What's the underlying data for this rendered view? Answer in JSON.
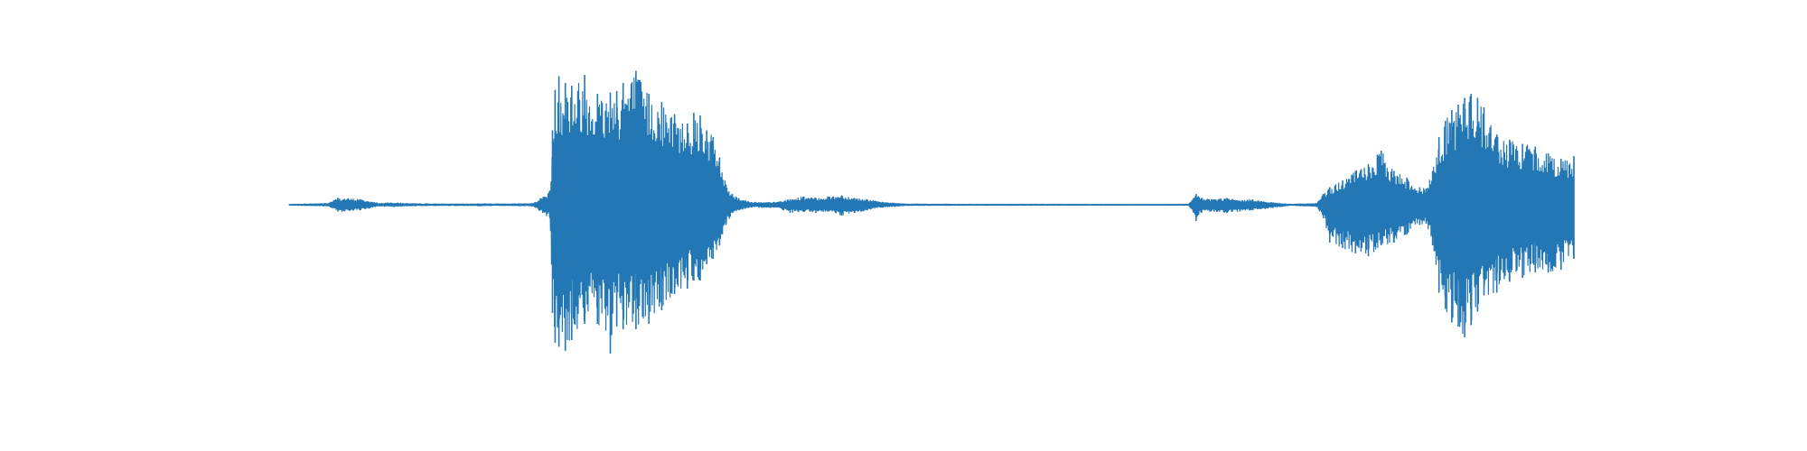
{
  "chart_data": {
    "type": "line",
    "title": "",
    "xlabel": "",
    "ylabel": "",
    "axes_visible": false,
    "grid": false,
    "legend": "none",
    "xlim": [
      0,
      1
    ],
    "ylim": [
      -1.0,
      1.0
    ],
    "series": [
      {
        "color": "#2377b4",
        "kind": "audio-waveform-amplitude-envelope",
        "x": [
          0.0,
          0.03,
          0.038,
          0.055,
          0.07,
          0.08,
          0.095,
          0.12,
          0.135,
          0.15,
          0.17,
          0.19,
          0.203,
          0.205,
          0.207,
          0.21,
          0.215,
          0.22,
          0.23,
          0.24,
          0.25,
          0.255,
          0.26,
          0.27,
          0.28,
          0.29,
          0.3,
          0.31,
          0.315,
          0.32,
          0.325,
          0.33,
          0.335,
          0.34,
          0.345,
          0.35,
          0.355,
          0.36,
          0.37,
          0.38,
          0.39,
          0.4,
          0.41,
          0.42,
          0.43,
          0.44,
          0.45,
          0.46,
          0.48,
          0.5,
          0.53,
          0.56,
          0.6,
          0.66,
          0.7,
          0.704,
          0.706,
          0.71,
          0.72,
          0.73,
          0.74,
          0.75,
          0.76,
          0.78,
          0.8,
          0.805,
          0.81,
          0.82,
          0.83,
          0.84,
          0.85,
          0.86,
          0.87,
          0.88,
          0.885,
          0.89,
          0.895,
          0.9,
          0.905,
          0.91,
          0.915,
          0.92,
          0.925,
          0.93,
          0.94,
          0.95,
          0.96,
          0.97,
          0.98,
          0.99,
          1.0
        ],
        "upper": [
          0.003,
          0.01,
          0.05,
          0.04,
          0.01,
          0.015,
          0.008,
          0.006,
          0.006,
          0.008,
          0.006,
          0.01,
          0.1,
          0.55,
          0.85,
          0.95,
          0.9,
          0.88,
          0.96,
          0.82,
          0.83,
          0.84,
          0.9,
          0.99,
          0.82,
          0.76,
          0.67,
          0.6,
          0.68,
          0.66,
          0.55,
          0.5,
          0.35,
          0.15,
          0.08,
          0.05,
          0.03,
          0.02,
          0.015,
          0.02,
          0.04,
          0.06,
          0.05,
          0.06,
          0.07,
          0.05,
          0.04,
          0.02,
          0.006,
          0.005,
          0.004,
          0.004,
          0.004,
          0.003,
          0.004,
          0.05,
          0.08,
          0.05,
          0.04,
          0.05,
          0.03,
          0.04,
          0.02,
          0.004,
          0.01,
          0.08,
          0.13,
          0.18,
          0.25,
          0.3,
          0.4,
          0.25,
          0.2,
          0.13,
          0.12,
          0.25,
          0.5,
          0.62,
          0.7,
          0.74,
          0.79,
          0.82,
          0.79,
          0.72,
          0.52,
          0.48,
          0.45,
          0.43,
          0.38,
          0.34,
          0.36
        ],
        "lower": [
          -0.003,
          -0.01,
          -0.05,
          -0.04,
          -0.01,
          -0.015,
          -0.008,
          -0.006,
          -0.006,
          -0.008,
          -0.006,
          -0.01,
          -0.1,
          -0.8,
          -1.02,
          -1.05,
          -1.08,
          -1.0,
          -0.88,
          -0.88,
          -1.1,
          -0.9,
          -0.92,
          -0.92,
          -0.88,
          -0.78,
          -0.66,
          -0.62,
          -0.56,
          -0.56,
          -0.44,
          -0.4,
          -0.3,
          -0.15,
          -0.06,
          -0.04,
          -0.03,
          -0.02,
          -0.02,
          -0.02,
          -0.06,
          -0.05,
          -0.06,
          -0.05,
          -0.08,
          -0.06,
          -0.04,
          -0.02,
          -0.006,
          -0.005,
          -0.004,
          -0.004,
          -0.004,
          -0.003,
          -0.004,
          -0.06,
          -0.12,
          -0.06,
          -0.05,
          -0.06,
          -0.05,
          -0.04,
          -0.03,
          -0.005,
          -0.015,
          -0.1,
          -0.28,
          -0.32,
          -0.36,
          -0.38,
          -0.3,
          -0.28,
          -0.22,
          -0.15,
          -0.14,
          -0.3,
          -0.65,
          -0.77,
          -0.87,
          -0.9,
          -0.98,
          -0.89,
          -0.79,
          -0.67,
          -0.65,
          -0.57,
          -0.54,
          -0.5,
          -0.5,
          -0.48,
          -0.4
        ]
      }
    ]
  }
}
